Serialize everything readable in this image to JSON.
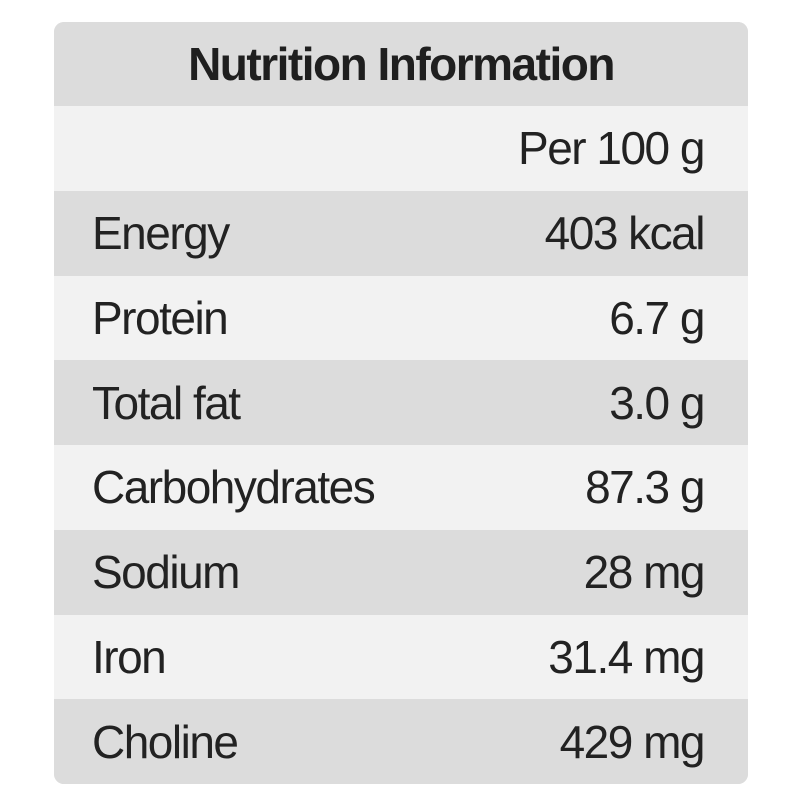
{
  "table": {
    "title": "Nutrition Information",
    "column_header": "Per 100 g",
    "rows": [
      {
        "nutrient": "Energy",
        "value": "403 kcal"
      },
      {
        "nutrient": "Protein",
        "value": "6.7 g"
      },
      {
        "nutrient": "Total fat",
        "value": "3.0 g"
      },
      {
        "nutrient": "Carbohydrates",
        "value": "87.3 g"
      },
      {
        "nutrient": "Sodium",
        "value": "28 mg"
      },
      {
        "nutrient": "Iron",
        "value": "31.4 mg"
      },
      {
        "nutrient": "Choline",
        "value": "429 mg"
      }
    ]
  },
  "colors": {
    "dark_band": "#dcdcdc",
    "light_band": "#f2f2f2",
    "text": "#222222"
  }
}
